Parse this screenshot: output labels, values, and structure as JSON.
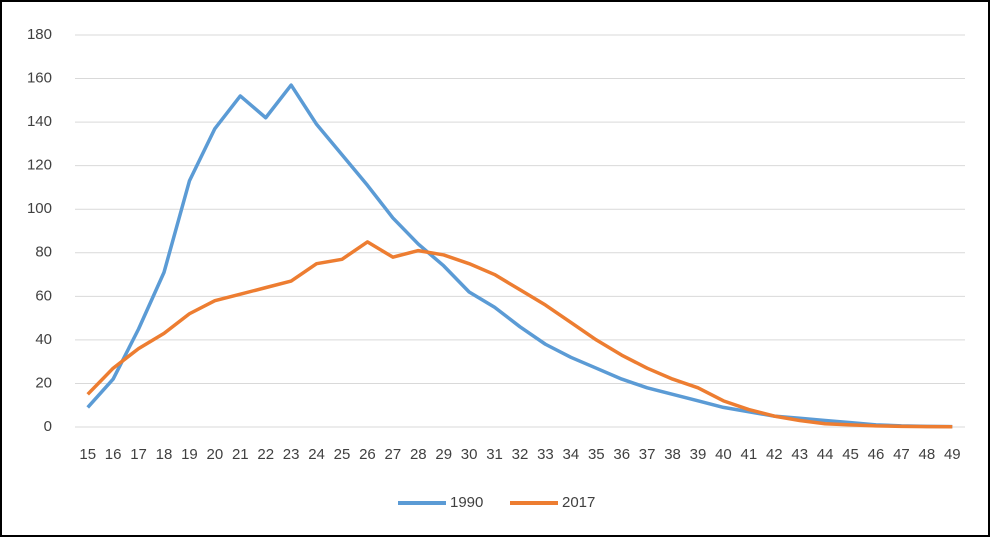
{
  "chart_data": {
    "type": "line",
    "categories": [
      "15",
      "16",
      "17",
      "18",
      "19",
      "20",
      "21",
      "22",
      "23",
      "24",
      "25",
      "26",
      "27",
      "28",
      "29",
      "30",
      "31",
      "32",
      "33",
      "34",
      "35",
      "36",
      "37",
      "38",
      "39",
      "40",
      "41",
      "42",
      "43",
      "44",
      "45",
      "46",
      "47",
      "48",
      "49"
    ],
    "series": [
      {
        "name": "1990",
        "color": "#5b9bd5",
        "values": [
          9,
          22,
          45,
          71,
          113,
          137,
          152,
          142,
          157,
          139,
          125,
          111,
          96,
          84,
          74,
          62,
          55,
          46,
          38,
          32,
          27,
          22,
          18,
          15,
          12,
          9,
          7,
          5,
          4,
          3,
          2,
          1,
          0.5,
          0.3,
          0.2
        ]
      },
      {
        "name": "2017",
        "color": "#ed7d31",
        "values": [
          15,
          27,
          36,
          43,
          52,
          58,
          61,
          64,
          67,
          75,
          77,
          85,
          78,
          81,
          79,
          75,
          70,
          63,
          56,
          48,
          40,
          33,
          27,
          22,
          18,
          12,
          8,
          5,
          3,
          1.5,
          1,
          0.5,
          0.3,
          0.2,
          0.1
        ]
      }
    ],
    "ylim": [
      0,
      180
    ],
    "yticks": [
      0,
      20,
      40,
      60,
      80,
      100,
      120,
      140,
      160,
      180
    ],
    "grid": true,
    "legend": "bottom"
  }
}
